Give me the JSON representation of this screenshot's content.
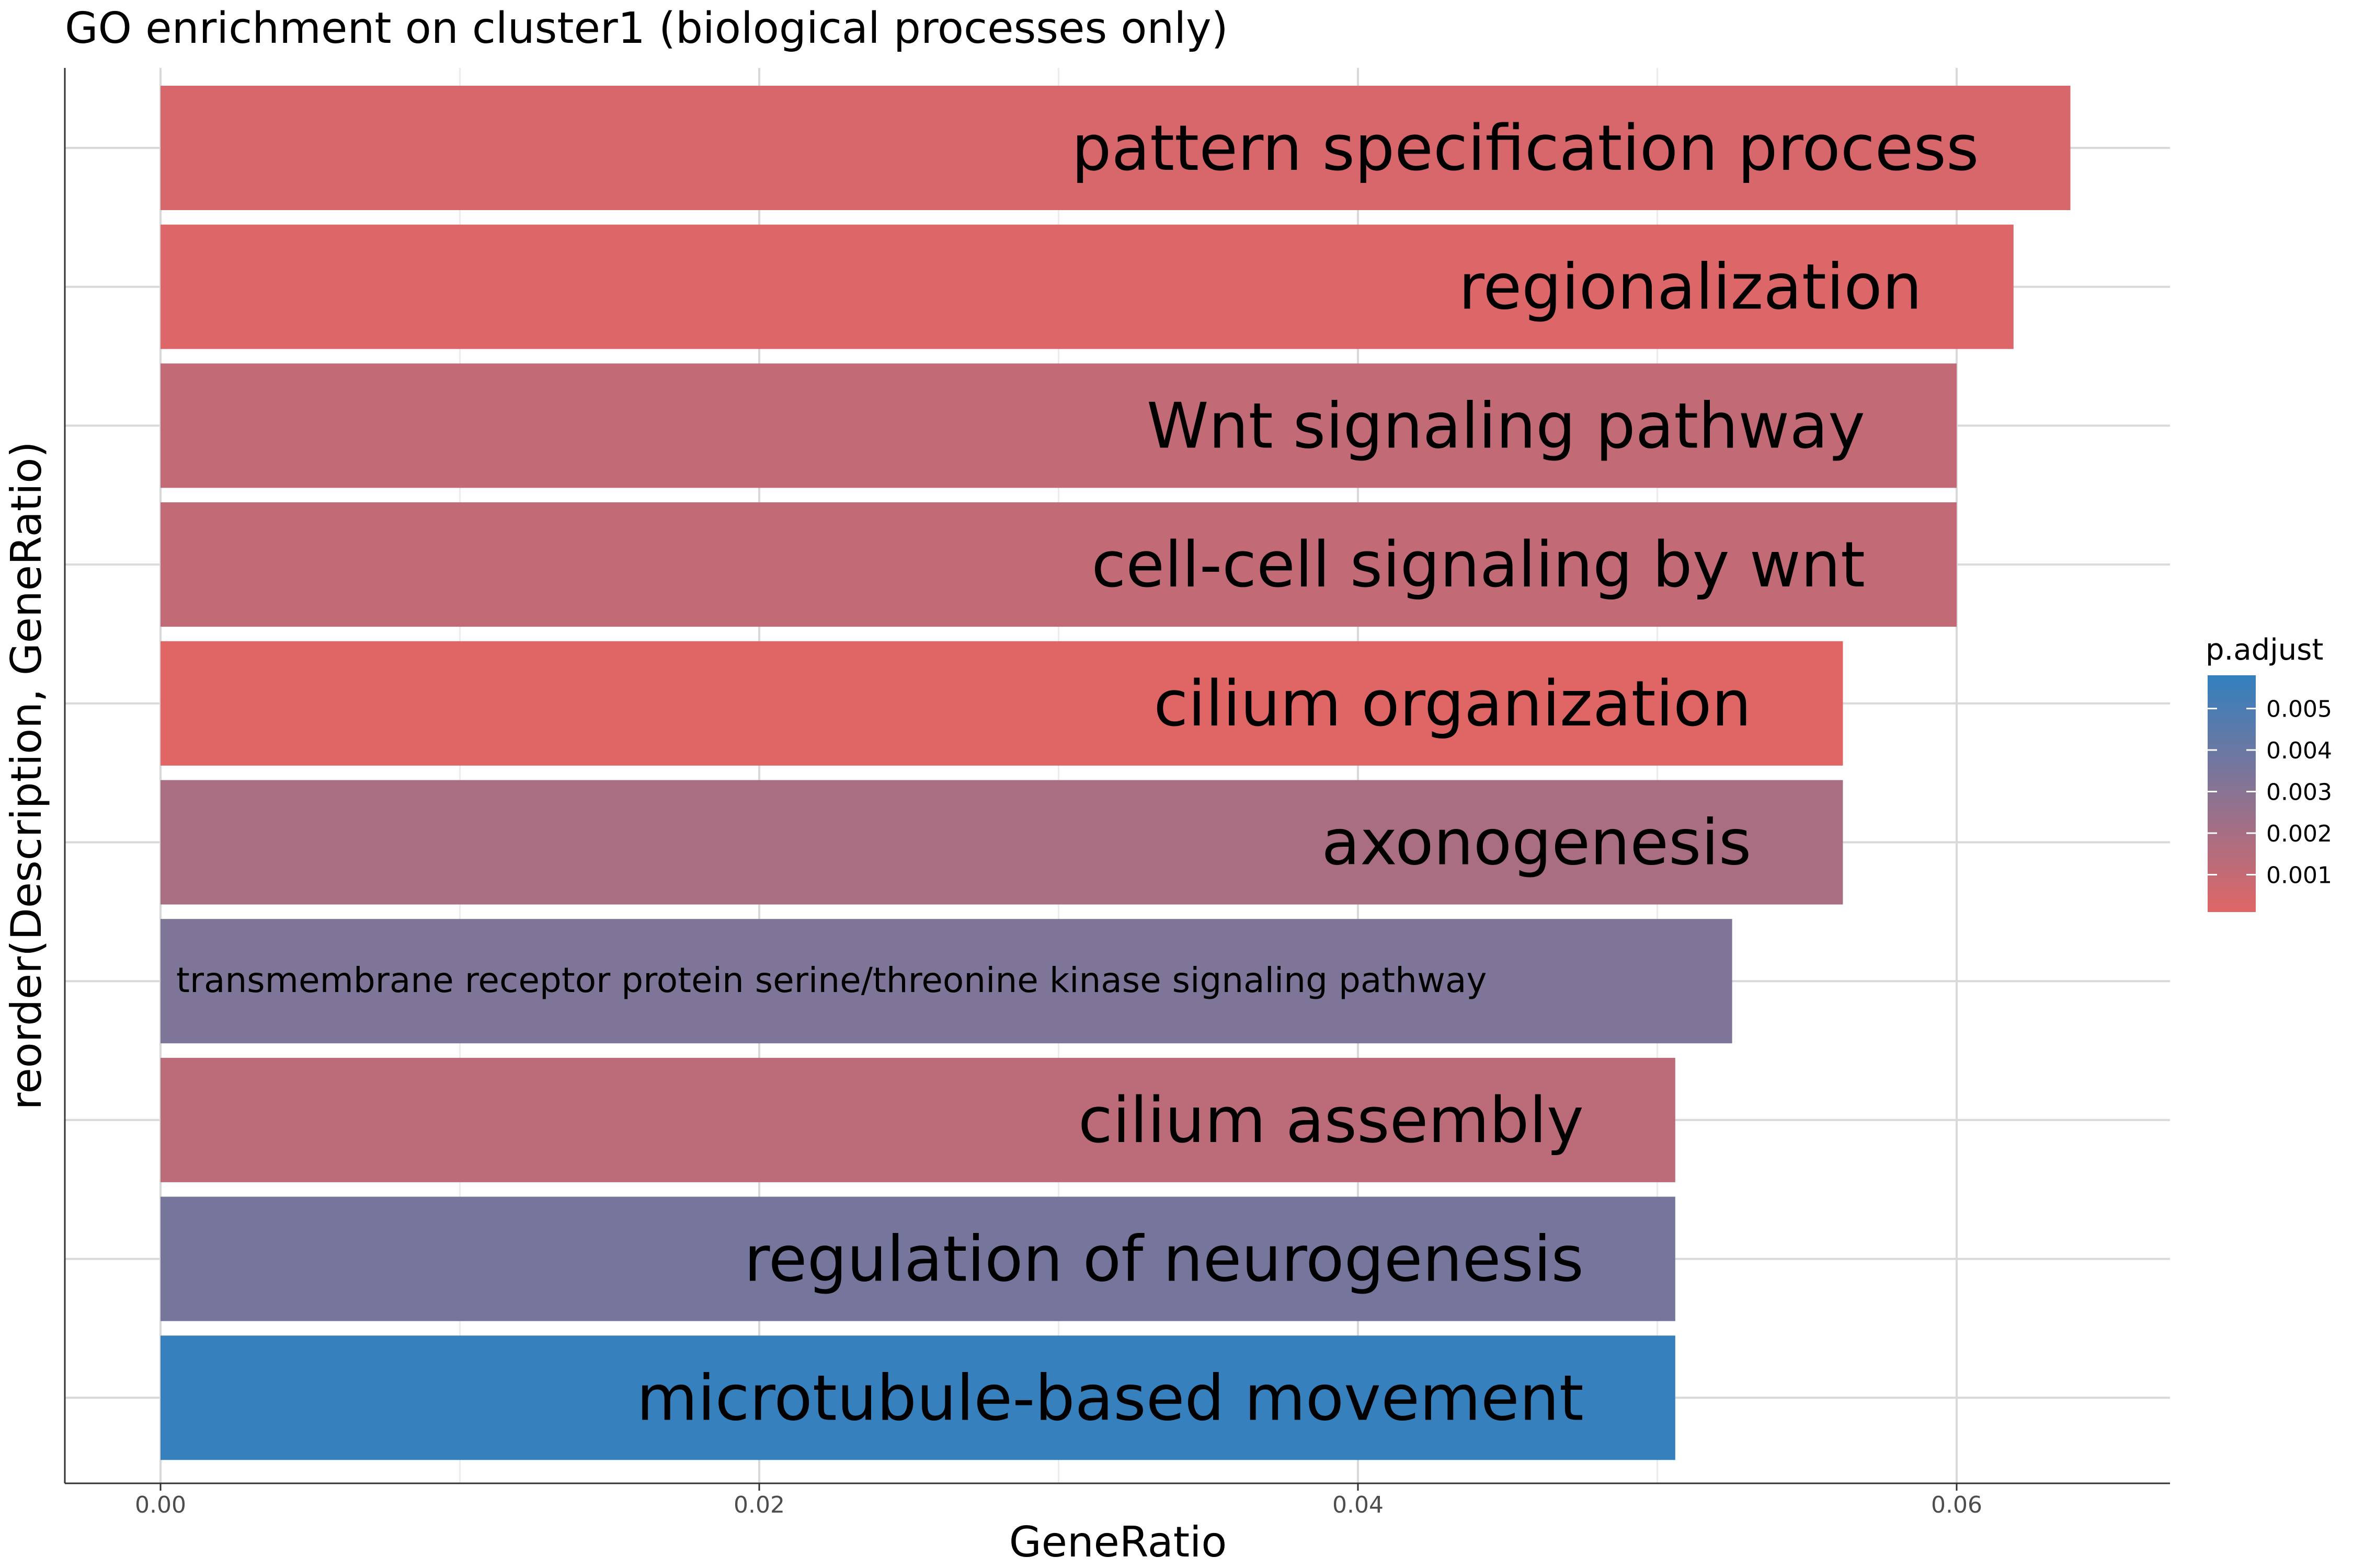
{
  "chart_data": {
    "type": "bar",
    "orientation": "horizontal",
    "title": "GO enrichment on cluster1 (biological processes only)",
    "xlabel": "GeneRatio",
    "ylabel": "reorder(Description, GeneRatio)",
    "xlim": [
      0,
      0.0671
    ],
    "x_ticks": [
      {
        "value": 0.0,
        "label": "0.00"
      },
      {
        "value": 0.02,
        "label": "0.02"
      },
      {
        "value": 0.04,
        "label": "0.04"
      },
      {
        "value": 0.06,
        "label": "0.06"
      }
    ],
    "grid": true,
    "bar_color_encoding": "p.adjust",
    "colors": {
      "low": "#E06666",
      "high": "#3380BF"
    },
    "categories": [
      "pattern specification process",
      "regionalization",
      "Wnt signaling pathway",
      "cell-cell signaling by wnt",
      "cilium organization",
      "axonogenesis",
      "transmembrane receptor protein serine/threonine kinase signaling pathway",
      "cilium assembly",
      "regulation of neurogenesis",
      "microtubule-based movement"
    ],
    "values": [
      0.0638,
      0.0619,
      0.06,
      0.06,
      0.0562,
      0.0562,
      0.0525,
      0.0506,
      0.0506,
      0.0506
    ],
    "p_adjust": [
      0.0004,
      0.0002,
      0.0011,
      0.0011,
      0.0001,
      0.0019,
      0.0033,
      0.0013,
      0.0036,
      0.0057
    ],
    "legend": {
      "title": "p.adjust",
      "placement": "right",
      "range": [
        0.0001,
        0.0058
      ],
      "ticks": [
        {
          "value": 0.001,
          "label": "0.001"
        },
        {
          "value": 0.002,
          "label": "0.002"
        },
        {
          "value": 0.003,
          "label": "0.003"
        },
        {
          "value": 0.004,
          "label": "0.004"
        },
        {
          "value": 0.005,
          "label": "0.005"
        }
      ]
    }
  }
}
